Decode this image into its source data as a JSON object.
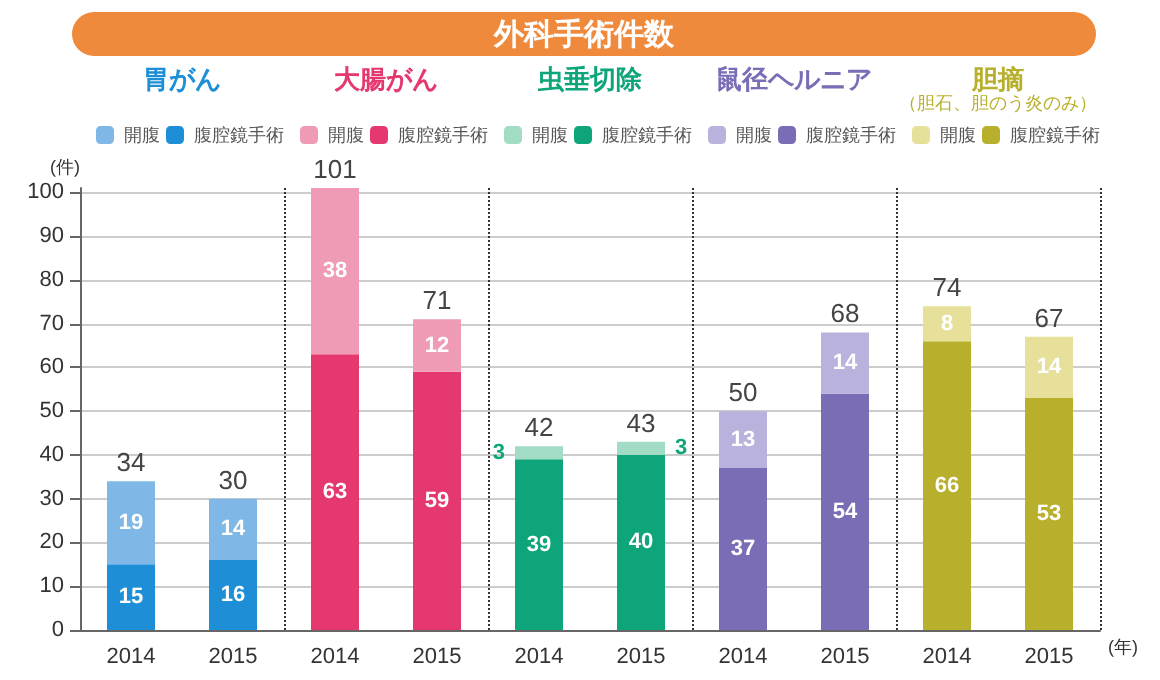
{
  "chart_data": {
    "type": "bar",
    "title": "外科手術件数",
    "ylabel": "(件)",
    "xlabel": "(年)",
    "categories": [
      "2014",
      "2015",
      "2014",
      "2015",
      "2014",
      "2015",
      "2014",
      "2015",
      "2014",
      "2015"
    ],
    "series": [
      {
        "name": "腹腔鏡手術",
        "color": "#1e8fd6",
        "values": [
          15,
          16,
          null,
          null,
          null,
          null,
          null,
          null,
          null,
          null
        ]
      },
      {
        "name": "開腹",
        "color": "#7fb8e6",
        "values": [
          19,
          14,
          null,
          null,
          null,
          null,
          null,
          null,
          null,
          null
        ]
      },
      {
        "name": "腹腔鏡手術",
        "color": "#e5386e",
        "values": [
          null,
          null,
          63,
          59,
          null,
          null,
          null,
          null,
          null,
          null
        ]
      },
      {
        "name": "開腹",
        "color": "#f09bb5",
        "values": [
          null,
          null,
          38,
          12,
          null,
          null,
          null,
          null,
          null,
          null
        ]
      },
      {
        "name": "腹腔鏡手術",
        "color": "#0fa57a",
        "values": [
          null,
          null,
          null,
          null,
          39,
          40,
          null,
          null,
          null,
          null
        ]
      },
      {
        "name": "開腹",
        "color": "#a3dcc4",
        "values": [
          null,
          null,
          null,
          null,
          3,
          3,
          null,
          null,
          null,
          null
        ]
      },
      {
        "name": "腹腔鏡手術",
        "color": "#7a6db5",
        "values": [
          null,
          null,
          null,
          null,
          null,
          null,
          37,
          54,
          null,
          null
        ]
      },
      {
        "name": "開腹",
        "color": "#b9b2dc",
        "values": [
          null,
          null,
          null,
          null,
          null,
          null,
          13,
          14,
          null,
          null
        ]
      },
      {
        "name": "腹腔鏡手術",
        "color": "#b8b02c",
        "values": [
          null,
          null,
          null,
          null,
          null,
          null,
          null,
          null,
          66,
          53
        ]
      },
      {
        "name": "開腹",
        "color": "#e6e09a",
        "values": [
          null,
          null,
          null,
          null,
          null,
          null,
          null,
          null,
          8,
          14
        ]
      }
    ],
    "stacked": true,
    "data_labels": true,
    "totals": [
      "34",
      "30",
      "101",
      "71",
      "42",
      "43",
      "50",
      "68",
      "74",
      "67"
    ],
    "annotations": [
      "胃がん",
      "大腸がん",
      "虫垂切除",
      "鼠径ヘルニア",
      "胆摘",
      "（胆石、胆のう炎のみ）"
    ],
    "ylim": [
      0,
      101
    ],
    "yticks": [
      0,
      10,
      20,
      30,
      40,
      50,
      60,
      70,
      80,
      90,
      100
    ],
    "grid": "y",
    "legend": "top"
  }
}
